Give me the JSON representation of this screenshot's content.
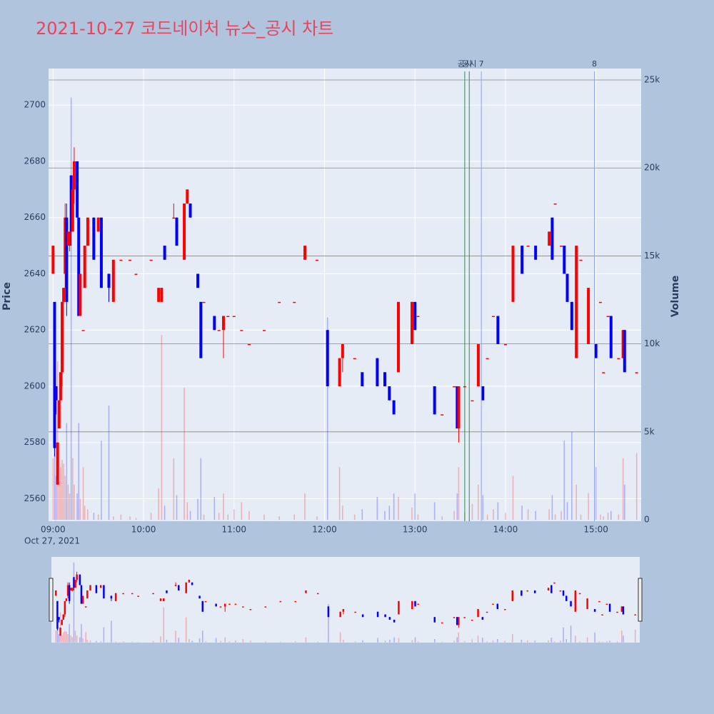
{
  "chart_data": {
    "type": "candlestick",
    "title": "2021-10-27 코드네이처 뉴스_공시 차트",
    "yaxis_title": "Price",
    "y2axis_title": "Volume",
    "date_label": "Oct 27, 2021",
    "increasing_color": "#ff0000",
    "decreasing_color": "#0000ff",
    "x": [
      "09:00",
      "09:01",
      "09:02",
      "09:03",
      "09:04",
      "09:05",
      "09:06",
      "09:07",
      "09:08",
      "09:09",
      "09:10",
      "09:11",
      "09:12",
      "09:13",
      "09:14",
      "09:16",
      "09:17",
      "09:18",
      "09:20",
      "09:21",
      "09:23",
      "09:27",
      "09:30",
      "09:32",
      "09:37",
      "09:40",
      "09:45",
      "09:51",
      "09:55",
      "10:05",
      "10:10",
      "10:12",
      "10:14",
      "10:20",
      "10:22",
      "10:27",
      "10:29",
      "10:31",
      "10:36",
      "10:38",
      "10:40",
      "10:47",
      "10:50",
      "10:53",
      "10:56",
      "11:00",
      "11:05",
      "11:10",
      "11:20",
      "11:30",
      "11:40",
      "11:47",
      "11:55",
      "12:02",
      "12:10",
      "12:12",
      "12:20",
      "12:25",
      "12:35",
      "12:40",
      "12:43",
      "12:46",
      "12:49",
      "12:58",
      "13:00",
      "13:02",
      "13:13",
      "13:18",
      "13:26",
      "13:28",
      "13:29",
      "13:33",
      "13:38",
      "13:42",
      "13:45",
      "13:48",
      "13:52",
      "13:55",
      "14:00",
      "14:05",
      "14:11",
      "14:15",
      "14:20",
      "14:29",
      "14:31",
      "14:33",
      "14:37",
      "14:39",
      "14:41",
      "14:44",
      "14:47",
      "14:50",
      "14:55",
      "15:00",
      "15:03",
      "15:05",
      "15:08",
      "15:10",
      "15:15",
      "15:18",
      "15:19",
      "15:27"
    ],
    "open": [
      2640,
      2630,
      2600,
      2565,
      2585,
      2595,
      2605,
      2630,
      2640,
      2660,
      2650,
      2650,
      2675,
      2655,
      2670,
      2680,
      2660,
      2625,
      2620,
      2635,
      2650,
      2660,
      2655,
      2660,
      2640,
      2630,
      2645,
      2645,
      2640,
      2645,
      2630,
      2630,
      2650,
      2660,
      2660,
      2645,
      2665,
      2665,
      2640,
      2630,
      2630,
      2625,
      2620,
      2620,
      2625,
      2625,
      2620,
      2615,
      2620,
      2630,
      2630,
      2645,
      2645,
      2620,
      2600,
      2610,
      2610,
      2605,
      2610,
      2605,
      2600,
      2595,
      2605,
      2615,
      2630,
      2625,
      2600,
      2590,
      2600,
      2600,
      2585,
      2600,
      2595,
      2600,
      2600,
      2610,
      2625,
      2625,
      2615,
      2630,
      2650,
      2650,
      2650,
      2650,
      2660,
      2665,
      2650,
      2650,
      2640,
      2630,
      2610,
      2645,
      2615,
      2615,
      2630,
      2605,
      2625,
      2625,
      2610,
      2610,
      2620,
      2605
    ],
    "high": [
      2650,
      2630,
      2600,
      2580,
      2595,
      2605,
      2630,
      2635,
      2665,
      2665,
      2655,
      2655,
      2675,
      2670,
      2685,
      2680,
      2660,
      2640,
      2620,
      2650,
      2660,
      2660,
      2660,
      2660,
      2640,
      2645,
      2645,
      2645,
      2640,
      2645,
      2635,
      2635,
      2650,
      2665,
      2660,
      2665,
      2670,
      2665,
      2640,
      2630,
      2630,
      2625,
      2620,
      2625,
      2625,
      2625,
      2620,
      2615,
      2620,
      2630,
      2630,
      2650,
      2645,
      2620,
      2610,
      2615,
      2610,
      2605,
      2610,
      2605,
      2600,
      2595,
      2630,
      2630,
      2630,
      2625,
      2600,
      2590,
      2600,
      2600,
      2600,
      2600,
      2595,
      2615,
      2600,
      2610,
      2625,
      2625,
      2615,
      2650,
      2650,
      2650,
      2650,
      2655,
      2660,
      2665,
      2650,
      2650,
      2640,
      2630,
      2650,
      2645,
      2635,
      2615,
      2630,
      2605,
      2625,
      2625,
      2610,
      2620,
      2620,
      2605
    ],
    "low": [
      2640,
      2575,
      2590,
      2565,
      2585,
      2595,
      2600,
      2630,
      2635,
      2625,
      2650,
      2648,
      2650,
      2655,
      2665,
      2660,
      2625,
      2625,
      2620,
      2635,
      2650,
      2645,
      2655,
      2635,
      2630,
      2630,
      2645,
      2645,
      2640,
      2645,
      2630,
      2630,
      2645,
      2660,
      2650,
      2645,
      2665,
      2660,
      2635,
      2610,
      2630,
      2620,
      2620,
      2610,
      2625,
      2625,
      2620,
      2615,
      2620,
      2630,
      2630,
      2645,
      2645,
      2600,
      2600,
      2605,
      2610,
      2600,
      2600,
      2600,
      2595,
      2590,
      2605,
      2615,
      2620,
      2625,
      2590,
      2590,
      2600,
      2585,
      2580,
      2600,
      2595,
      2600,
      2595,
      2610,
      2625,
      2615,
      2615,
      2630,
      2640,
      2650,
      2645,
      2650,
      2645,
      2665,
      2650,
      2640,
      2630,
      2620,
      2610,
      2645,
      2615,
      2610,
      2630,
      2605,
      2625,
      2610,
      2610,
      2610,
      2605,
      2605
    ],
    "close": [
      2650,
      2578,
      2595,
      2580,
      2595,
      2605,
      2630,
      2635,
      2660,
      2630,
      2655,
      2655,
      2655,
      2670,
      2680,
      2660,
      2625,
      2640,
      2620,
      2650,
      2660,
      2645,
      2660,
      2635,
      2635,
      2645,
      2645,
      2645,
      2640,
      2645,
      2635,
      2635,
      2645,
      2660,
      2650,
      2665,
      2670,
      2660,
      2635,
      2610,
      2630,
      2620,
      2620,
      2625,
      2625,
      2625,
      2620,
      2615,
      2620,
      2630,
      2630,
      2650,
      2645,
      2600,
      2610,
      2615,
      2610,
      2600,
      2600,
      2600,
      2595,
      2590,
      2630,
      2630,
      2620,
      2625,
      2590,
      2590,
      2600,
      2585,
      2600,
      2600,
      2595,
      2615,
      2595,
      2610,
      2625,
      2615,
      2615,
      2650,
      2640,
      2650,
      2645,
      2655,
      2645,
      2665,
      2650,
      2640,
      2630,
      2620,
      2650,
      2645,
      2635,
      2610,
      2630,
      2605,
      2625,
      2610,
      2610,
      2620,
      2605,
      2605
    ],
    "volume": [
      3500,
      6000,
      2500,
      9000,
      2200,
      3000,
      3400,
      3200,
      2500,
      5500,
      2000,
      1500,
      24000,
      3500,
      2000,
      1500,
      5500,
      1200,
      3000,
      800,
      600,
      400,
      300,
      4500,
      6500,
      200,
      300,
      200,
      100,
      400,
      1800,
      10500,
      800,
      3500,
      1400,
      7500,
      1000,
      500,
      1200,
      3500,
      300,
      1300,
      400,
      1500,
      300,
      600,
      1000,
      500,
      300,
      200,
      300,
      1500,
      200,
      11500,
      3000,
      800,
      300,
      600,
      1300,
      500,
      800,
      1500,
      1300,
      700,
      1500,
      300,
      1000,
      200,
      500,
      1500,
      3000,
      400,
      900,
      2000,
      1400,
      300,
      600,
      1000,
      400,
      2500,
      800,
      600,
      500,
      600,
      1400,
      300,
      500,
      4500,
      1000,
      5000,
      2000,
      300,
      1500,
      3000,
      300,
      200,
      400,
      500,
      300,
      3500,
      2000,
      3800
    ],
    "xlim": [
      "08:57",
      "15:30"
    ],
    "xticks": [
      "09:00",
      "10:00",
      "11:00",
      "12:00",
      "13:00",
      "14:00",
      "15:00"
    ],
    "ylim": [
      2552,
      2713
    ],
    "yticks": [
      2560,
      2580,
      2600,
      2620,
      2640,
      2660,
      2680,
      2700
    ],
    "y2lim": [
      -80,
      25650
    ],
    "y2ticks": [
      0,
      {
        "value": 5000,
        "label": "5k"
      },
      {
        "value": 10000,
        "label": "10k"
      },
      {
        "value": 15000,
        "label": "15k"
      },
      {
        "value": 20000,
        "label": "20k"
      },
      {
        "value": 25000,
        "label": "25k"
      }
    ],
    "annotations": [
      {
        "x": "13:33",
        "text": "공시",
        "color": "#2e8b57"
      },
      {
        "x": "13:36",
        "text": "공시",
        "color": "#2e8b57"
      },
      {
        "x": "13:44",
        "text": "7",
        "color": "#8fa4e8"
      },
      {
        "x": "14:59",
        "text": "8",
        "color": "#8fa4e8"
      }
    ]
  }
}
